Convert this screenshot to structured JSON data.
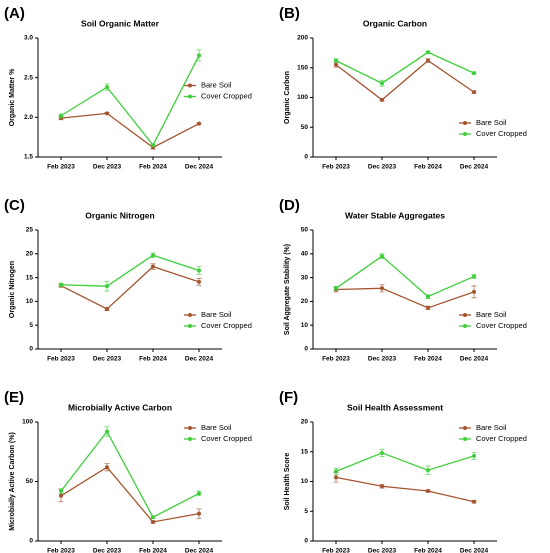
{
  "chart_data": [
    {
      "type": "line",
      "panel": "(A)",
      "title": "Soil Organic Matter",
      "y_label": "Organic Matter %",
      "categories": [
        "Feb 2023",
        "Dec 2023",
        "Feb 2024",
        "Dec 2024"
      ],
      "ylim": [
        1.5,
        3.0
      ],
      "yticks": [
        {
          "value": 1.5,
          "label": "1.5"
        },
        {
          "value": 2.0,
          "label": "2.0"
        },
        {
          "value": 2.5,
          "label": "2.5"
        },
        {
          "value": 3.0,
          "label": "3.0"
        }
      ],
      "legend": "center right",
      "series": [
        {
          "name": "Bare Soil",
          "color": "#a5552f",
          "values": [
            1.99,
            2.05,
            1.62,
            1.92
          ],
          "errors": [
            0.02,
            0.01,
            0.02,
            0.01
          ]
        },
        {
          "name": "Cover Cropped",
          "color": "#3fcf3a",
          "values": [
            2.02,
            2.38,
            1.65,
            2.78
          ],
          "errors": [
            0.02,
            0.04,
            0.01,
            0.07
          ]
        }
      ]
    },
    {
      "type": "line",
      "panel": "(B)",
      "title": "Organic Carbon",
      "y_label": "Organic Carbon",
      "categories": [
        "Feb 2023",
        "Dec 2023",
        "Feb 2024",
        "Dec 2024"
      ],
      "ylim": [
        0,
        200
      ],
      "yticks": [
        0,
        50,
        100,
        150,
        200
      ],
      "legend": "lower right",
      "series": [
        {
          "name": "Bare Soil",
          "color": "#a5552f",
          "values": [
            155,
            96,
            162,
            109
          ],
          "errors": [
            4,
            2,
            3,
            2
          ]
        },
        {
          "name": "Cover Cropped",
          "color": "#3fcf3a",
          "values": [
            162,
            124,
            176,
            141
          ],
          "errors": [
            3,
            5,
            2,
            2
          ]
        }
      ]
    },
    {
      "type": "line",
      "panel": "(C)",
      "title": "Organic Nitrogen",
      "y_label": "Organic Nitrogen",
      "categories": [
        "Feb 2023",
        "Dec 2023",
        "Feb 2024",
        "Dec 2024"
      ],
      "ylim": [
        0,
        25
      ],
      "yticks": [
        0,
        5,
        10,
        15,
        20,
        25
      ],
      "legend": "lower right",
      "series": [
        {
          "name": "Bare Soil",
          "color": "#a5552f",
          "values": [
            13.3,
            8.4,
            17.3,
            14.1
          ],
          "errors": [
            0.3,
            0.3,
            0.6,
            0.7
          ]
        },
        {
          "name": "Cover Cropped",
          "color": "#3fcf3a",
          "values": [
            13.5,
            13.2,
            19.7,
            16.5
          ],
          "errors": [
            0.3,
            1,
            0.5,
            0.8
          ]
        }
      ]
    },
    {
      "type": "line",
      "panel": "(D)",
      "title": "Water Stable Aggregates",
      "y_label": "Soil Aggregate  Stability (%)",
      "categories": [
        "Feb 2023",
        "Dec 2023",
        "Feb 2024",
        "Dec 2024"
      ],
      "ylim": [
        0,
        50
      ],
      "yticks": [
        0,
        10,
        20,
        30,
        40,
        50
      ],
      "legend": "lower right",
      "series": [
        {
          "name": "Bare Soil",
          "color": "#a5552f",
          "values": [
            25,
            25.5,
            17.3,
            24
          ],
          "errors": [
            1,
            1.5,
            0.7,
            2.5
          ]
        },
        {
          "name": "Cover Cropped",
          "color": "#3fcf3a",
          "values": [
            25.5,
            39,
            22,
            30.5
          ],
          "errors": [
            0.8,
            1,
            0.8,
            0.8
          ]
        }
      ]
    },
    {
      "type": "line",
      "panel": "(E)",
      "title": "Microbially Active Carbon",
      "y_label": "Microbially Active Carbon (%)",
      "categories": [
        "Feb 2023",
        "Dec 2023",
        "Feb 2024",
        "Dec 2024"
      ],
      "ylim": [
        0,
        100
      ],
      "yticks": [
        0,
        50,
        100
      ],
      "legend": "upper right",
      "series": [
        {
          "name": "Bare Soil",
          "color": "#a5552f",
          "values": [
            38,
            62,
            16,
            23
          ],
          "errors": [
            5,
            3,
            1,
            4
          ]
        },
        {
          "name": "Cover Cropped",
          "color": "#3fcf3a",
          "values": [
            42,
            92,
            20,
            40
          ],
          "errors": [
            2,
            4,
            1,
            2
          ]
        }
      ]
    },
    {
      "type": "line",
      "panel": "(F)",
      "title": "Soil Health Assessment",
      "y_label": "Soil Health  Score",
      "categories": [
        "Feb 2023",
        "Dec 2023",
        "Feb 2024",
        "Dec 2024"
      ],
      "ylim": [
        0,
        20
      ],
      "yticks": [
        0,
        5,
        10,
        15,
        20
      ],
      "legend": "upper right",
      "series": [
        {
          "name": "Bare Soil",
          "color": "#a5552f",
          "values": [
            10.7,
            9.2,
            8.4,
            6.6
          ],
          "errors": [
            0.8,
            0.3,
            0.2,
            0.2
          ]
        },
        {
          "name": "Cover Cropped",
          "color": "#3fcf3a",
          "values": [
            11.7,
            14.8,
            11.9,
            14.3
          ],
          "errors": [
            0.5,
            0.6,
            0.7,
            0.6
          ]
        }
      ]
    }
  ]
}
